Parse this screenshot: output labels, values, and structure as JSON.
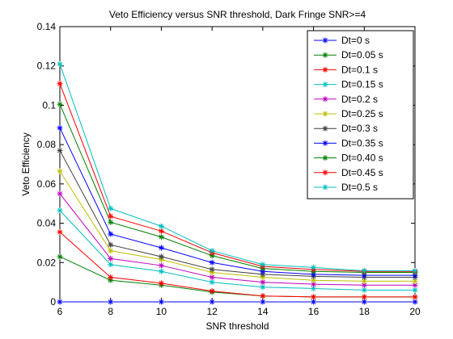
{
  "chart_data": {
    "type": "line",
    "title": "Veto Efficiency versus SNR threshold, Dark Fringe SNR>=4",
    "xlabel": "SNR threshold",
    "ylabel": "Veto Efficiency",
    "xlim": [
      6,
      20
    ],
    "ylim": [
      0,
      0.14
    ],
    "xticks": [
      6,
      8,
      10,
      12,
      14,
      16,
      18,
      20
    ],
    "yticks": [
      0,
      0.02,
      0.04,
      0.06,
      0.08,
      0.1,
      0.12,
      0.14
    ],
    "xtick_labels": [
      "6",
      "8",
      "10",
      "12",
      "14",
      "16",
      "18",
      "20"
    ],
    "ytick_labels": [
      "0",
      "0.02",
      "0.04",
      "0.06",
      "0.08",
      "0.1",
      "0.12",
      "0.14"
    ],
    "grid": false,
    "legend_position": "top-right",
    "marker": "asterisk",
    "x": [
      6,
      8,
      10,
      12,
      14,
      16,
      18,
      20
    ],
    "series": [
      {
        "name": "Dt=0 s",
        "color": "#0000ff",
        "values": [
          0,
          0,
          0,
          0,
          0,
          0,
          0,
          0
        ]
      },
      {
        "name": "Dt=0.05 s",
        "color": "#007f00",
        "values": [
          0.023,
          0.011,
          0.0085,
          0.005,
          0.003,
          0.0025,
          0.0025,
          0.0025
        ]
      },
      {
        "name": "Dt=0.1 s",
        "color": "#ff0000",
        "values": [
          0.0355,
          0.0125,
          0.0095,
          0.0055,
          0.003,
          0.0025,
          0.0025,
          0.0025
        ]
      },
      {
        "name": "Dt=0.15 s",
        "color": "#00bfbf",
        "values": [
          0.0465,
          0.019,
          0.0155,
          0.01,
          0.0075,
          0.0068,
          0.006,
          0.006
        ]
      },
      {
        "name": "Dt=0.2 s",
        "color": "#bf00bf",
        "values": [
          0.055,
          0.022,
          0.0185,
          0.0125,
          0.01,
          0.009,
          0.0085,
          0.0085
        ]
      },
      {
        "name": "Dt=0.25 s",
        "color": "#bfbf00",
        "values": [
          0.0665,
          0.026,
          0.0215,
          0.015,
          0.0125,
          0.011,
          0.0105,
          0.0105
        ]
      },
      {
        "name": "Dt=0.3 s",
        "color": "#3f3f3f",
        "values": [
          0.077,
          0.029,
          0.023,
          0.0165,
          0.014,
          0.013,
          0.0125,
          0.0125
        ]
      },
      {
        "name": "Dt=0.35 s",
        "color": "#0000ff",
        "values": [
          0.0885,
          0.0345,
          0.0275,
          0.02,
          0.0155,
          0.014,
          0.0135,
          0.0135
        ]
      },
      {
        "name": "Dt=0.40 s",
        "color": "#007f00",
        "values": [
          0.1005,
          0.0405,
          0.033,
          0.0235,
          0.017,
          0.0155,
          0.015,
          0.015
        ]
      },
      {
        "name": "Dt=0.45 s",
        "color": "#ff0000",
        "values": [
          0.111,
          0.0435,
          0.036,
          0.025,
          0.018,
          0.0165,
          0.0155,
          0.0155
        ]
      },
      {
        "name": "Dt=0.5 s",
        "color": "#00bfbf",
        "values": [
          0.121,
          0.0475,
          0.0385,
          0.026,
          0.019,
          0.0175,
          0.0158,
          0.0158
        ]
      }
    ]
  }
}
